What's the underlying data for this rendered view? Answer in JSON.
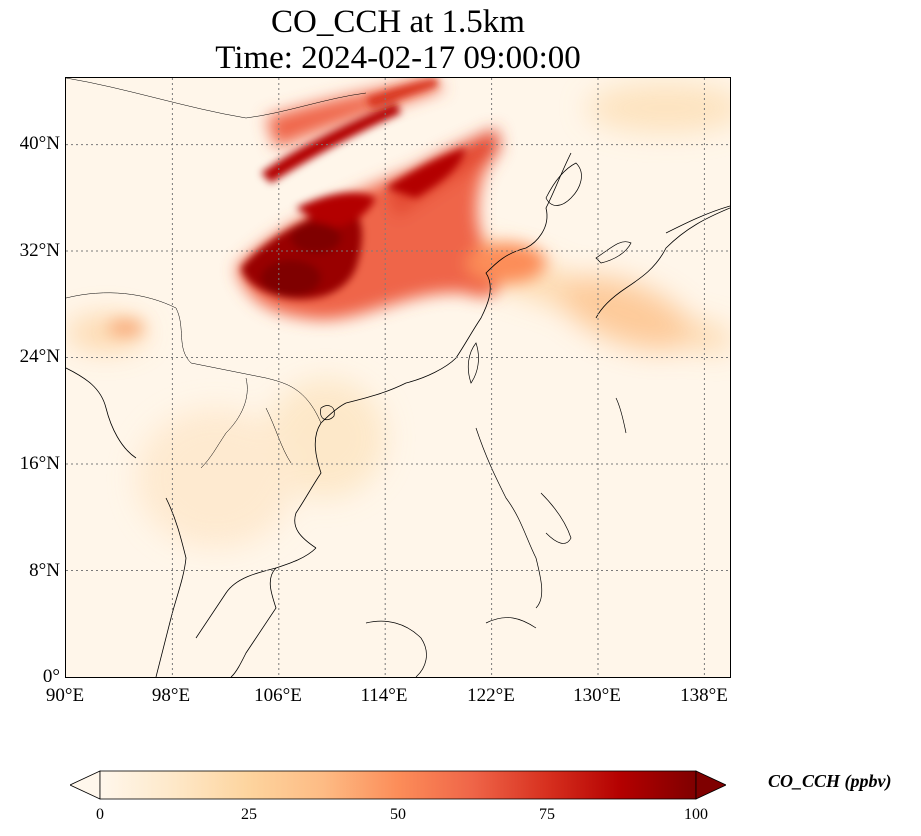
{
  "title": {
    "line1": "CO_CCH at 1.5km",
    "line2": "Time: 2024-02-17 09:00:00"
  },
  "map": {
    "projection": "PlateCarree",
    "extent": {
      "lon_min": 90,
      "lon_max": 140,
      "lat_min": 0,
      "lat_max": 45
    },
    "gridlines": "dotted",
    "lat_labels": [
      "40°N",
      "32°N",
      "24°N",
      "16°N",
      "8°N",
      "0°"
    ],
    "lon_labels": [
      "90°E",
      "98°E",
      "106°E",
      "114°E",
      "122°E",
      "130°E",
      "138°E"
    ]
  },
  "colorbar": {
    "label": "CO_CCH (ppbv)",
    "cmap": "OrRd",
    "vmin": 0,
    "vmax": 100,
    "extend": "both",
    "ticks": [
      "0",
      "25",
      "50",
      "75",
      "100"
    ]
  },
  "colors": {
    "low": "#fff7ec",
    "mid": "#fc8d59",
    "high": "#7f0000"
  }
}
